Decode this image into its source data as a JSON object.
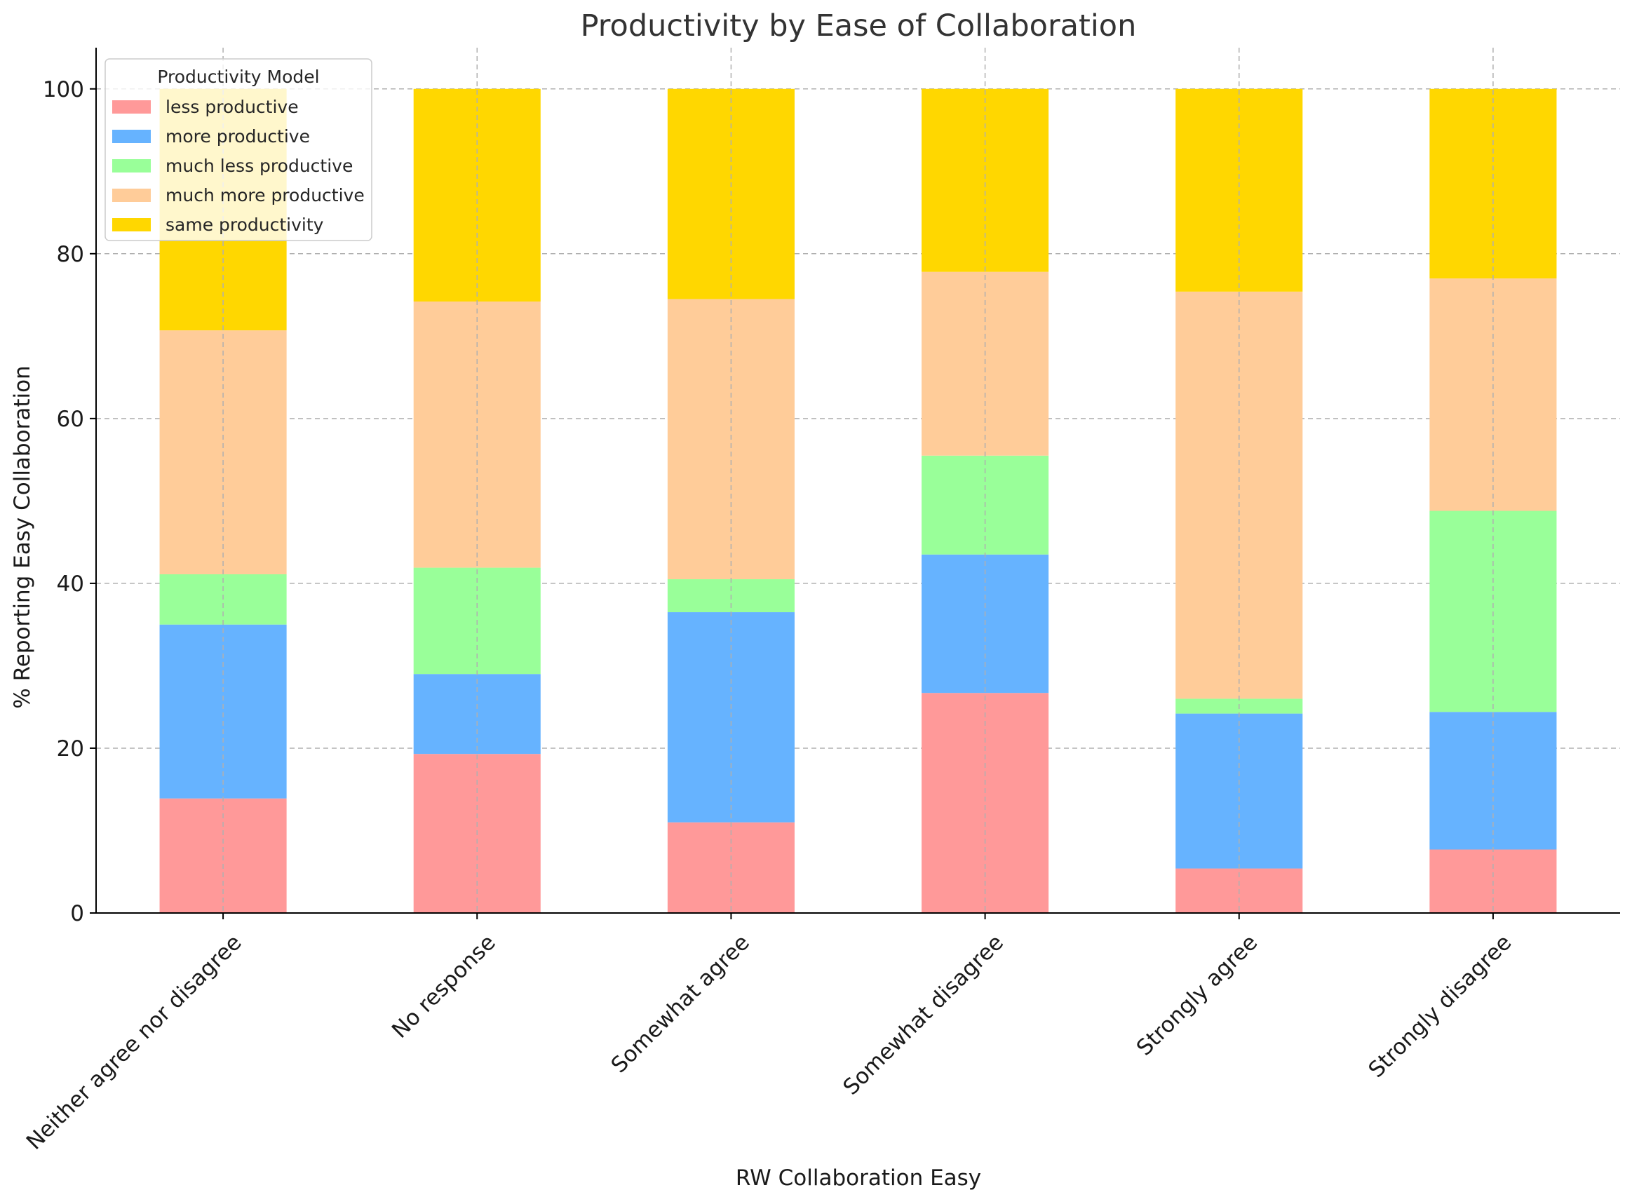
{
  "chart_data": {
    "type": "bar",
    "stacked": true,
    "title": "Productivity by Ease of Collaboration",
    "xlabel": "RW Collaboration Easy",
    "ylabel": "% Reporting Easy Collaboration",
    "ylim": [
      0,
      105
    ],
    "yticks": [
      0,
      20,
      40,
      60,
      80,
      100
    ],
    "grid": true,
    "legend": {
      "title": "Productivity Model",
      "placement": "top-left"
    },
    "categories": [
      "Neither agree nor disagree",
      "No response",
      "Somewhat agree",
      "Somewhat disagree",
      "Strongly agree",
      "Strongly disagree"
    ],
    "series": [
      {
        "name": "less productive",
        "color": "#ff9999",
        "values": [
          13.9,
          19.3,
          11.0,
          26.7,
          5.4,
          7.7
        ]
      },
      {
        "name": "more productive",
        "color": "#66b3ff",
        "values": [
          21.1,
          9.7,
          25.5,
          16.8,
          18.8,
          16.7
        ]
      },
      {
        "name": "much less productive",
        "color": "#99ff99",
        "values": [
          6.1,
          12.9,
          4.0,
          12.0,
          1.8,
          24.4
        ]
      },
      {
        "name": "much more productive",
        "color": "#ffcc99",
        "values": [
          29.6,
          32.3,
          34.0,
          22.3,
          49.4,
          28.2
        ]
      },
      {
        "name": "same productivity",
        "color": "#ffd700",
        "values": [
          29.3,
          25.8,
          25.5,
          22.2,
          24.6,
          23.0
        ]
      }
    ]
  }
}
